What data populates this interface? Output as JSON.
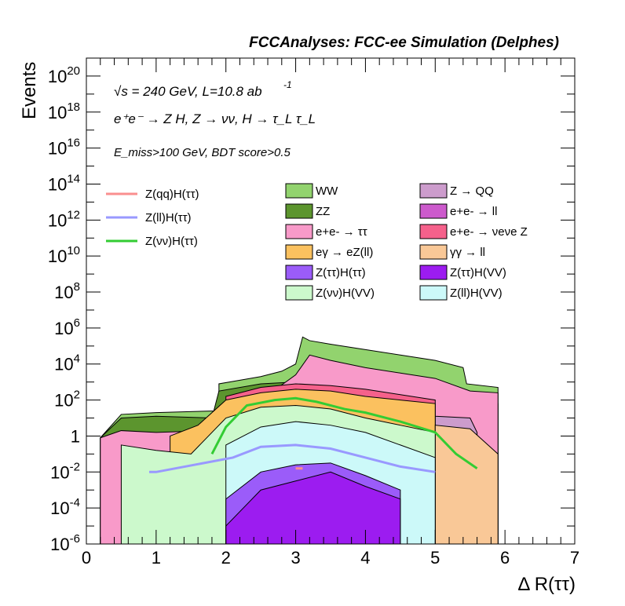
{
  "header": {
    "title": "FCCAnalyses: FCC-ee Simulation (Delphes)",
    "energy_line": "√s = 240 GeV, L=10.8 ab",
    "energy_sup": "-1",
    "process_line": "e⁺e⁻ → Z H, Z → νν, H → τ_L τ_L",
    "selection_line": "E_miss>100 GeV, BDT score>0.5"
  },
  "chart_data": {
    "type": "histogram",
    "xlabel": "Δ R(ττ)",
    "ylabel": "Events",
    "xlim": [
      0,
      7
    ],
    "ylim": [
      1e-06,
      1e+21
    ],
    "yscale": "log",
    "x_ticks": [
      "0",
      "1",
      "2",
      "3",
      "4",
      "5",
      "6",
      "7"
    ],
    "y_ticks": [
      {
        "base": "10",
        "exp": "-6"
      },
      {
        "base": "10",
        "exp": "-4"
      },
      {
        "base": "10",
        "exp": "-2"
      },
      {
        "base": "1",
        "exp": ""
      },
      {
        "base": "10",
        "exp": "2"
      },
      {
        "base": "10",
        "exp": "4"
      },
      {
        "base": "10",
        "exp": "6"
      },
      {
        "base": "10",
        "exp": "8"
      },
      {
        "base": "10",
        "exp": "10"
      },
      {
        "base": "10",
        "exp": "12"
      },
      {
        "base": "10",
        "exp": "14"
      },
      {
        "base": "10",
        "exp": "16"
      },
      {
        "base": "10",
        "exp": "18"
      },
      {
        "base": "10",
        "exp": "20"
      }
    ],
    "grid": false,
    "legend_position": "top",
    "bin_edges_start": 0,
    "bin_width": 0.1,
    "stacked_totals_log10": [
      {
        "name": "WW",
        "color": "#92d36e",
        "points": [
          [
            0.2,
            -0.1
          ],
          [
            0.5,
            1.2
          ],
          [
            1.0,
            1.3
          ],
          [
            1.9,
            1.4
          ],
          [
            1.9,
            2.9
          ],
          [
            2.2,
            3.1
          ],
          [
            2.5,
            3.3
          ],
          [
            2.8,
            3.6
          ],
          [
            3.0,
            4.0
          ],
          [
            3.1,
            5.5
          ],
          [
            3.2,
            5.3
          ],
          [
            3.5,
            5.1
          ],
          [
            4.0,
            4.8
          ],
          [
            4.5,
            4.5
          ],
          [
            5.0,
            4.2
          ],
          [
            5.4,
            3.8
          ],
          [
            5.45,
            2.9
          ],
          [
            5.9,
            2.7
          ],
          [
            5.9,
            -6
          ]
        ]
      },
      {
        "name": "ZZ",
        "color": "#5c952e",
        "points": [
          [
            0.2,
            -0.1
          ],
          [
            0.5,
            1.0
          ],
          [
            1.0,
            1.1
          ],
          [
            1.8,
            1.0
          ],
          [
            1.9,
            2.5
          ],
          [
            2.5,
            2.9
          ],
          [
            3.0,
            3.0
          ],
          [
            3.5,
            3.0
          ],
          [
            4.0,
            2.6
          ],
          [
            4.5,
            2.4
          ],
          [
            5.0,
            2.3
          ],
          [
            5.5,
            2.1
          ],
          [
            5.9,
            1.8
          ]
        ]
      },
      {
        "name": "e+e- → ττ",
        "color": "#f89ac9",
        "points": [
          [
            0.2,
            -0.1
          ],
          [
            0.5,
            0.3
          ],
          [
            1.0,
            0.2
          ],
          [
            1.8,
            0.3
          ],
          [
            1.9,
            1.5
          ],
          [
            2.5,
            2.0
          ],
          [
            3.0,
            3.4
          ],
          [
            3.2,
            4.5
          ],
          [
            3.5,
            4.2
          ],
          [
            4.0,
            3.8
          ],
          [
            4.5,
            3.5
          ],
          [
            5.0,
            3.2
          ],
          [
            5.5,
            2.5
          ],
          [
            5.9,
            2.4
          ]
        ]
      },
      {
        "name": "Z → QQ",
        "color": "#cc9ccc",
        "points": [
          [
            3.0,
            1.9
          ],
          [
            3.5,
            1.8
          ],
          [
            4.0,
            1.6
          ],
          [
            4.5,
            1.4
          ],
          [
            5.0,
            1.1
          ],
          [
            5.5,
            1.0
          ],
          [
            5.6,
            0.2
          ]
        ]
      },
      {
        "name": "e+e- → νeνe Z",
        "color": "#f5618b",
        "points": [
          [
            2.0,
            2.2
          ],
          [
            2.5,
            2.7
          ],
          [
            3.0,
            2.9
          ],
          [
            3.5,
            2.8
          ],
          [
            4.0,
            2.6
          ],
          [
            4.5,
            2.3
          ],
          [
            5.0,
            2.0
          ]
        ]
      },
      {
        "name": "eγ → eZ(ll)",
        "color": "#fbc15f",
        "points": [
          [
            1.2,
            0.0
          ],
          [
            1.6,
            0.6
          ],
          [
            2.0,
            2.0
          ],
          [
            2.5,
            2.4
          ],
          [
            3.0,
            2.6
          ],
          [
            3.5,
            2.5
          ],
          [
            4.0,
            2.2
          ],
          [
            4.5,
            2.0
          ],
          [
            5.0,
            1.8
          ]
        ]
      },
      {
        "name": "γγ → ll",
        "color": "#f9c897",
        "points": [
          [
            5.0,
            0.6
          ],
          [
            5.5,
            0.4
          ],
          [
            5.9,
            -1.0
          ]
        ]
      },
      {
        "name": "Z(νν)H(VV)",
        "color": "#ccf9cc",
        "points": [
          [
            0.5,
            -0.5
          ],
          [
            1.0,
            -0.8
          ],
          [
            1.5,
            -1.0
          ],
          [
            2.0,
            1.0
          ],
          [
            2.5,
            1.6
          ],
          [
            3.0,
            1.7
          ],
          [
            3.5,
            1.5
          ],
          [
            4.0,
            1.0
          ],
          [
            4.5,
            0.6
          ],
          [
            5.0,
            0.2
          ]
        ]
      },
      {
        "name": "Z(ll)H(VV)",
        "color": "#ccf9f9",
        "points": [
          [
            2.0,
            -0.5
          ],
          [
            2.5,
            0.5
          ],
          [
            3.0,
            0.8
          ],
          [
            3.5,
            0.6
          ],
          [
            4.0,
            0.2
          ],
          [
            4.5,
            -0.5
          ],
          [
            5.0,
            -1.2
          ]
        ]
      },
      {
        "name": "Z(ττ)H(ττ)",
        "color": "#9b5cf9",
        "points": [
          [
            2.0,
            -3.5
          ],
          [
            2.5,
            -2.0
          ],
          [
            3.0,
            -1.6
          ],
          [
            3.5,
            -1.5
          ],
          [
            4.0,
            -2.2
          ],
          [
            4.5,
            -3.0
          ]
        ]
      },
      {
        "name": "Z(ττ)H(VV)",
        "color": "#9c1cf0",
        "points": [
          [
            2.0,
            -5.0
          ],
          [
            2.5,
            -3.0
          ],
          [
            3.0,
            -2.5
          ],
          [
            3.5,
            -2.0
          ],
          [
            4.0,
            -2.8
          ],
          [
            4.5,
            -3.5
          ]
        ]
      }
    ],
    "signal_series": [
      {
        "name": "Z(qq)H(ττ)",
        "color": "#fa8f8f",
        "points": [
          [
            3.0,
            -1.8
          ],
          [
            3.1,
            -1.8
          ]
        ]
      },
      {
        "name": "Z(ll)H(ττ)",
        "color": "#9999ff",
        "points": [
          [
            0.9,
            -2.0
          ],
          [
            1.0,
            -2.0
          ],
          [
            2.1,
            -1.2
          ],
          [
            2.5,
            -0.6
          ],
          [
            3.0,
            -0.5
          ],
          [
            3.5,
            -0.7
          ],
          [
            4.0,
            -1.2
          ],
          [
            4.5,
            -1.7
          ],
          [
            5.0,
            -2.0
          ]
        ]
      },
      {
        "name": "Z(νν)H(ττ)",
        "color": "#33cc33",
        "points": [
          [
            1.8,
            -1.0
          ],
          [
            2.0,
            0.5
          ],
          [
            2.3,
            1.7
          ],
          [
            2.7,
            2.0
          ],
          [
            3.0,
            2.1
          ],
          [
            3.3,
            1.9
          ],
          [
            3.7,
            1.5
          ],
          [
            4.0,
            1.3
          ],
          [
            4.5,
            0.8
          ],
          [
            5.0,
            0.2
          ],
          [
            5.3,
            -1.0
          ],
          [
            5.6,
            -1.8
          ]
        ]
      }
    ],
    "legend": {
      "lines": [
        "Z(qq)H(ττ)",
        "Z(ll)H(ττ)",
        "Z(νν)H(ττ)"
      ],
      "fills_col1": [
        "WW",
        "ZZ",
        "e+e- → ττ",
        "eγ → eZ(ll)",
        "Z(ττ)H(ττ)",
        "Z(νν)H(VV)"
      ],
      "fills_col2": [
        "Z → QQ",
        "e+e- → ll",
        "e+e- → νeνe Z",
        "γγ → ll",
        "Z(ττ)H(VV)",
        "Z(ll)H(VV)"
      ]
    },
    "legend_colors": {
      "Z(qq)H(ττ)": "#fa8f8f",
      "Z(ll)H(ττ)": "#9999ff",
      "Z(νν)H(ττ)": "#33cc33",
      "WW": "#92d36e",
      "ZZ": "#5c952e",
      "e+e- → ττ": "#f89ac9",
      "eγ → eZ(ll)": "#fbc15f",
      "Z(ττ)H(ττ)": "#9b5cf9",
      "Z(νν)H(VV)": "#ccf9cc",
      "Z → QQ": "#cc9ccc",
      "e+e- → ll": "#cc5acc",
      "e+e- → νeνe Z": "#f5618b",
      "γγ → ll": "#f9c897",
      "Z(ττ)H(VV)": "#9c1cf0",
      "Z(ll)H(VV)": "#ccf9f9"
    }
  }
}
